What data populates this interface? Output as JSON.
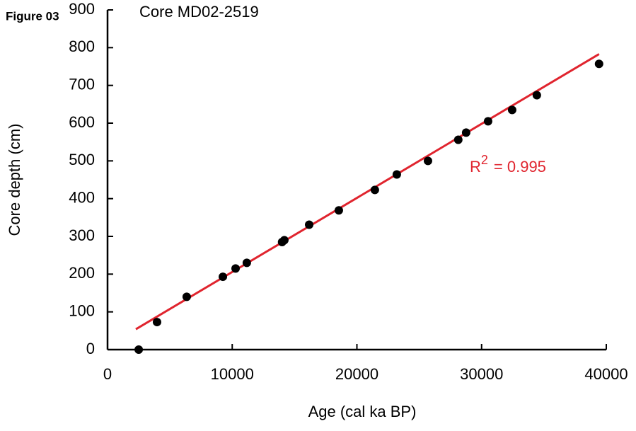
{
  "figure_label": "Figure 03",
  "chart_data": {
    "type": "scatter",
    "title": "Core MD02-2519",
    "x_label": "Age (cal ka BP)",
    "y_label": "Core depth (cm)",
    "xlim": [
      0,
      40000
    ],
    "ylim": [
      0,
      900
    ],
    "xticks": [
      0,
      10000,
      20000,
      30000,
      40000
    ],
    "yticks": [
      0,
      100,
      200,
      300,
      400,
      500,
      600,
      700,
      800,
      900
    ],
    "color": "#000000",
    "x": [
      2500,
      3970,
      6350,
      9250,
      10270,
      11170,
      14000,
      14180,
      16170,
      18550,
      21440,
      23200,
      25700,
      28130,
      28760,
      30520,
      32450,
      34430,
      39420
    ],
    "values": [
      0,
      73,
      140,
      193,
      215,
      230,
      285,
      290,
      331,
      369,
      423,
      464,
      500,
      556,
      575,
      605,
      635,
      674,
      757
    ],
    "fit_line": {
      "x": [
        2270,
        39420
      ],
      "y": [
        54,
        783
      ],
      "color": "#e0242e"
    },
    "annotation": {
      "text": "R",
      "superscript": "2",
      "rest": "= 0.995",
      "color": "#e0242e"
    }
  }
}
